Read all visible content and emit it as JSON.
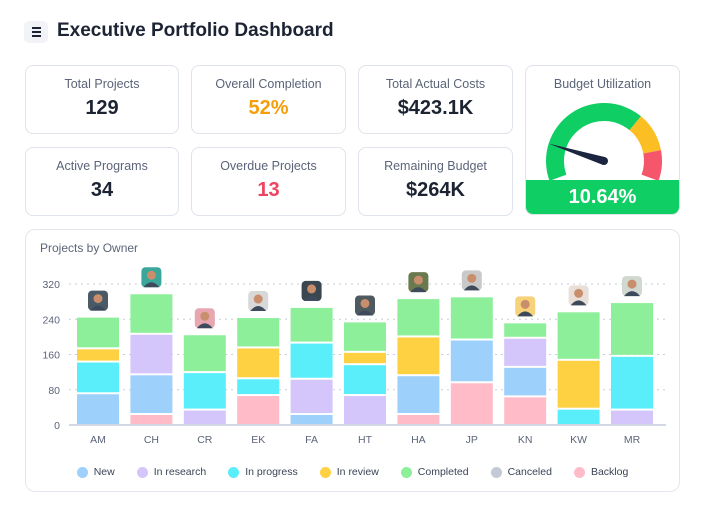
{
  "header": {
    "title": "Executive Portfolio Dashboard",
    "menu_icon": "hamburger-icon"
  },
  "kpis": [
    {
      "label": "Total Projects",
      "value": "129",
      "color": "#1c2333"
    },
    {
      "label": "Overall Completion",
      "value": "52%",
      "color": "#f59e0b"
    },
    {
      "label": "Total Actual Costs",
      "value": "$423.1K",
      "color": "#1c2333"
    },
    {
      "label": "Active Programs",
      "value": "34",
      "color": "#1c2333"
    },
    {
      "label": "Overdue Projects",
      "value": "13",
      "color": "#f0435f"
    },
    {
      "label": "Remaining Budget",
      "value": "$264K",
      "color": "#1c2333"
    }
  ],
  "budget": {
    "label": "Budget Utilization",
    "value": "10.64%",
    "fraction": 0.1064,
    "colors": {
      "ok": "#0fce63",
      "warn": "#fbbf24",
      "bad": "#f6566c"
    }
  },
  "chart_data": {
    "type": "bar",
    "stacked": true,
    "title": "Projects by Owner",
    "categories": [
      "AM",
      "CH",
      "CR",
      "EK",
      "FA",
      "HT",
      "HA",
      "JP",
      "KN",
      "KW",
      "MR"
    ],
    "yticks": [
      0,
      80,
      160,
      240,
      320
    ],
    "ylim": [
      0,
      320
    ],
    "grid": true,
    "legend_position": "bottom",
    "series": [
      {
        "name": "New",
        "color": "#9dd0fb",
        "values": [
          72,
          90,
          0,
          0,
          25,
          0,
          88,
          97,
          67,
          0,
          0
        ]
      },
      {
        "name": "In research",
        "color": "#d4c5fb",
        "values": [
          0,
          92,
          35,
          0,
          80,
          68,
          0,
          0,
          66,
          0,
          35
        ]
      },
      {
        "name": "In progress",
        "color": "#5aeefb",
        "values": [
          72,
          0,
          85,
          38,
          82,
          70,
          0,
          0,
          0,
          37,
          122
        ]
      },
      {
        "name": "In review",
        "color": "#fed142",
        "values": [
          30,
          0,
          0,
          70,
          0,
          28,
          88,
          0,
          0,
          111,
          0
        ]
      },
      {
        "name": "Completed",
        "color": "#8def99",
        "values": [
          72,
          92,
          86,
          69,
          81,
          69,
          87,
          98,
          35,
          110,
          122
        ]
      },
      {
        "name": "Canceled",
        "color": "#c4c9d6",
        "values": [
          0,
          0,
          0,
          0,
          0,
          0,
          0,
          0,
          0,
          0,
          0
        ]
      },
      {
        "name": "Backlog",
        "color": "#ffbcc8",
        "values": [
          0,
          25,
          0,
          68,
          0,
          0,
          25,
          97,
          65,
          0,
          0
        ]
      }
    ],
    "stack_order": [
      "Backlog",
      "Canceled",
      "New",
      "In research",
      "In progress",
      "In review",
      "Completed"
    ],
    "avatar_colors": [
      "#4a5a66",
      "#3aa79a",
      "#e8a7b0",
      "#d8d8d8",
      "#3b4750",
      "#4e5a60",
      "#6b7a4e",
      "#c9c9c9",
      "#f6d27a",
      "#e8e0d8",
      "#d0d8d0"
    ]
  }
}
